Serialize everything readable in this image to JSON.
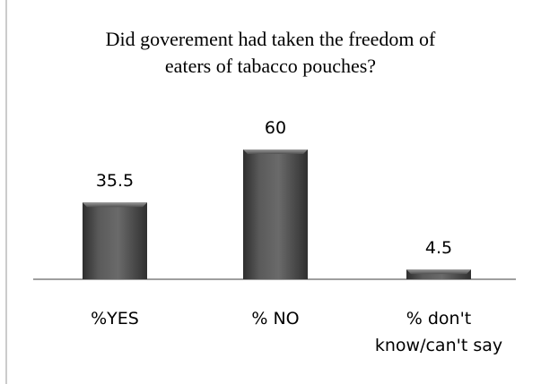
{
  "chart_data": {
    "type": "bar",
    "title_lines": [
      "Did goverement had taken the freedom of",
      "eaters of tabacco pouches?"
    ],
    "categories": [
      "%YES",
      "% NO",
      "% don't know/can't say"
    ],
    "category_label_lines": [
      [
        "%YES"
      ],
      [
        "% NO"
      ],
      [
        "% don't",
        "know/can't say"
      ]
    ],
    "values": [
      35.5,
      60,
      4.5
    ],
    "data_labels": [
      "35.5",
      "60",
      "4.5"
    ],
    "ylim": [
      0,
      60
    ],
    "grid": false,
    "legend": "none",
    "bar_color": "#4a4a4a"
  }
}
